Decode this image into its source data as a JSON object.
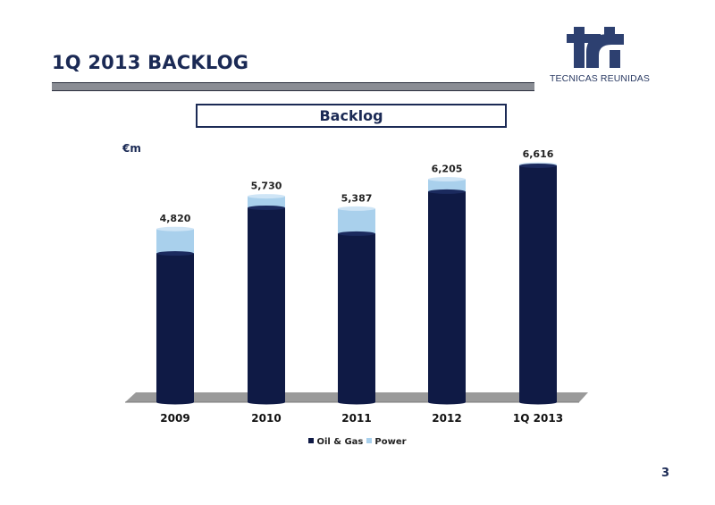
{
  "slide": {
    "title": "1Q 2013 BACKLOG",
    "page_number": "3",
    "logo_text": "TECNICAS REUNIDAS"
  },
  "colors": {
    "oil_gas": "#0f1a45",
    "power": "#a9d0ec",
    "floor": "#9a9a9a",
    "title": "#1b2a55"
  },
  "chart_data": {
    "type": "bar",
    "stacked": true,
    "title": "Backlog",
    "unit_label": "€m",
    "categories": [
      "2009",
      "2010",
      "2011",
      "2012",
      "1Q 2013"
    ],
    "totals": [
      4820,
      5730,
      5387,
      6205,
      6616
    ],
    "total_labels": [
      "4,820",
      "5,730",
      "5,387",
      "6,205",
      "6,616"
    ],
    "series": [
      {
        "name": "Oil & Gas",
        "values": [
          4140,
          5410,
          4690,
          5860,
          6580
        ]
      },
      {
        "name": "Power",
        "values": [
          680,
          320,
          697,
          345,
          36
        ]
      }
    ],
    "ylim": [
      0,
      6616
    ],
    "grid": false,
    "legend": "bottom"
  }
}
